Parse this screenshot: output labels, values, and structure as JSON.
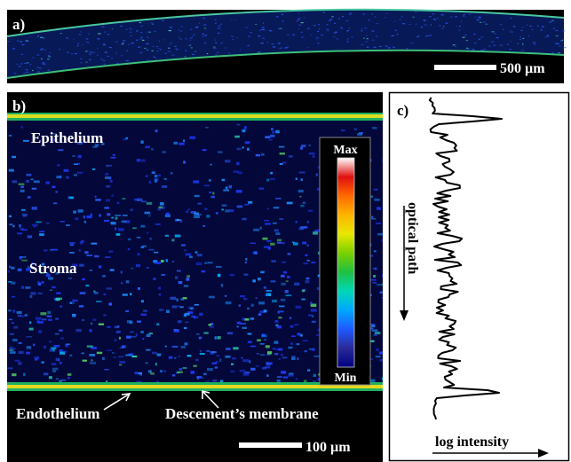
{
  "figure": {
    "panel_a": {
      "label": "a)",
      "scalebar_label": "500 µm"
    },
    "panel_b": {
      "label": "b)",
      "layers": {
        "epithelium": "Epithelium",
        "stroma": "Stroma",
        "endothelium": "Endothelium",
        "descemet": "Descement’s membrane"
      },
      "colorbar": {
        "max_label": "Max",
        "min_label": "Min",
        "colors": [
          "#000080",
          "#2a2a9a",
          "#1e5aff",
          "#00a8ff",
          "#00d7b4",
          "#20c040",
          "#7ad000",
          "#e8e800",
          "#ffb400",
          "#ff6a00",
          "#e01010",
          "#ffffff"
        ]
      },
      "scalebar_label": "100 µm"
    },
    "panel_c": {
      "label": "c)",
      "y_axis_label": "optical path",
      "x_axis_label": "log intensity"
    }
  }
}
